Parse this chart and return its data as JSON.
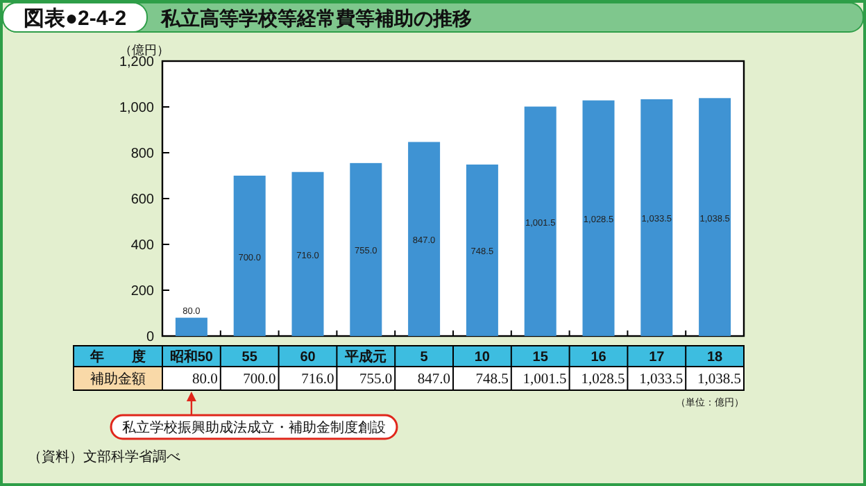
{
  "chart_data": {
    "type": "bar",
    "title": "私立高等学校等経常費等補助の推移",
    "xlabel": "年　　度",
    "ylabel": "（億円）",
    "categories": [
      "昭和50",
      "55",
      "60",
      "平成元",
      "5",
      "10",
      "15",
      "16",
      "17",
      "18"
    ],
    "series": [
      {
        "name": "補助金額",
        "color": "#3f93d3",
        "values": [
          80.0,
          700.0,
          716.0,
          755.0,
          847.0,
          748.5,
          1001.5,
          1028.5,
          1033.5,
          1038.5
        ],
        "value_labels": [
          "80.0",
          "700.0",
          "716.0",
          "755.0",
          "847.0",
          "748.5",
          "1,001.5",
          "1,028.5",
          "1,033.5",
          "1,038.5"
        ]
      }
    ],
    "ylim": [
      0,
      1200
    ],
    "yticks": [
      0,
      200,
      400,
      600,
      800,
      {
        "value": 1000,
        "label": "1,000"
      },
      {
        "value": 1200,
        "label": "1,200"
      }
    ],
    "annotations": [
      "図表●2-4-2",
      "（単位：億円）",
      "私立学校振興助成法成立・補助金制度創設",
      "（資料）文部科学省調べ"
    ]
  }
}
